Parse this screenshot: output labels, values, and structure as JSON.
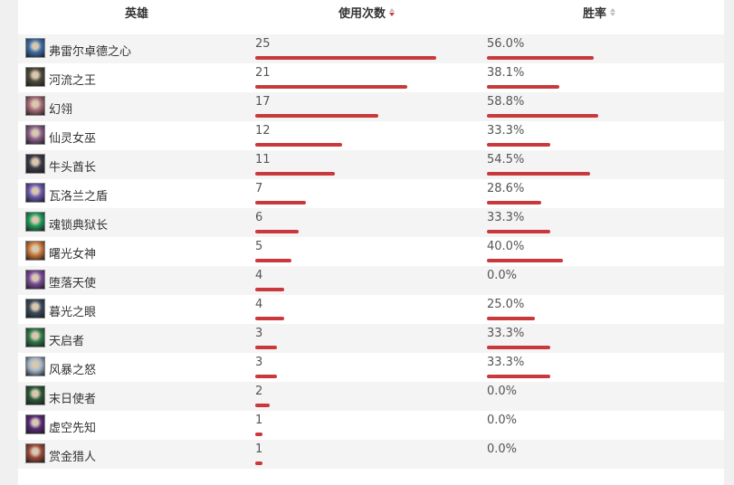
{
  "header": {
    "hero": "英雄",
    "usage": "使用次数",
    "winrate": "胜率"
  },
  "colors": {
    "bar": "#c9393b",
    "sort_active": "#c9393b",
    "sort_inactive": "#c0c0c0"
  },
  "rows": [
    {
      "name": "弗雷尔卓德之心",
      "usage": "25",
      "usage_value": 25,
      "winrate": "56.0%",
      "winrate_value": 56.0,
      "avatar": "#3b6ea8"
    },
    {
      "name": "河流之王",
      "usage": "21",
      "usage_value": 21,
      "winrate": "38.1%",
      "winrate_value": 38.1,
      "avatar": "#4d4a3a"
    },
    {
      "name": "幻翎",
      "usage": "17",
      "usage_value": 17,
      "winrate": "58.8%",
      "winrate_value": 58.8,
      "avatar": "#a86a78"
    },
    {
      "name": "仙灵女巫",
      "usage": "12",
      "usage_value": 12,
      "winrate": "33.3%",
      "winrate_value": 33.3,
      "avatar": "#8a5f8a"
    },
    {
      "name": "牛头酋长",
      "usage": "11",
      "usage_value": 11,
      "winrate": "54.5%",
      "winrate_value": 54.5,
      "avatar": "#3a3a48"
    },
    {
      "name": "瓦洛兰之盾",
      "usage": "7",
      "usage_value": 7,
      "winrate": "28.6%",
      "winrate_value": 28.6,
      "avatar": "#6a58b0"
    },
    {
      "name": "魂锁典狱长",
      "usage": "6",
      "usage_value": 6,
      "winrate": "33.3%",
      "winrate_value": 33.3,
      "avatar": "#1e9a5a"
    },
    {
      "name": "曙光女神",
      "usage": "5",
      "usage_value": 5,
      "winrate": "40.0%",
      "winrate_value": 40.0,
      "avatar": "#c8783a"
    },
    {
      "name": "堕落天使",
      "usage": "4",
      "usage_value": 4,
      "winrate": "0.0%",
      "winrate_value": 0.0,
      "avatar": "#7a4a9a"
    },
    {
      "name": "暮光之眼",
      "usage": "4",
      "usage_value": 4,
      "winrate": "25.0%",
      "winrate_value": 25.0,
      "avatar": "#3a4a5a"
    },
    {
      "name": "天启者",
      "usage": "3",
      "usage_value": 3,
      "winrate": "33.3%",
      "winrate_value": 33.3,
      "avatar": "#2e7a4a"
    },
    {
      "name": "风暴之怒",
      "usage": "3",
      "usage_value": 3,
      "winrate": "33.3%",
      "winrate_value": 33.3,
      "avatar": "#a0b4c8"
    },
    {
      "name": "末日使者",
      "usage": "2",
      "usage_value": 2,
      "winrate": "0.0%",
      "winrate_value": 0.0,
      "avatar": "#2a5a38"
    },
    {
      "name": "虚空先知",
      "usage": "1",
      "usage_value": 1,
      "winrate": "0.0%",
      "winrate_value": 0.0,
      "avatar": "#5a2a7a"
    },
    {
      "name": "赏金猎人",
      "usage": "1",
      "usage_value": 1,
      "winrate": "0.0%",
      "winrate_value": 0.0,
      "avatar": "#9a4a3a"
    }
  ]
}
